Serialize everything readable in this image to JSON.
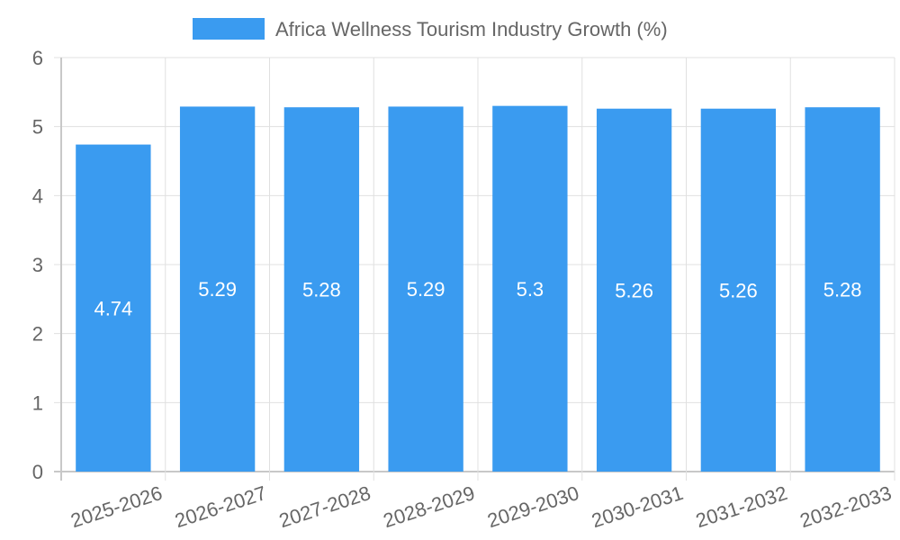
{
  "chart_data": {
    "type": "bar",
    "title": "",
    "xlabel": "",
    "ylabel": "",
    "categories": [
      "2025-2026",
      "2026-2027",
      "2027-2028",
      "2028-2029",
      "2029-2030",
      "2030-2031",
      "2031-2032",
      "2032-2033"
    ],
    "series": [
      {
        "name": "Africa Wellness Tourism Industry Growth (%)",
        "values": [
          4.74,
          5.29,
          5.28,
          5.29,
          5.3,
          5.26,
          5.26,
          5.28
        ],
        "color": "#3a9bf0"
      }
    ],
    "ylim": [
      0,
      6
    ],
    "yticks": [
      "0",
      "1",
      "2",
      "3",
      "4",
      "5",
      "6"
    ],
    "grid": true,
    "legend_position": "top-center",
    "data_labels": [
      "4.74",
      "5.29",
      "5.28",
      "5.29",
      "5.3",
      "5.26",
      "5.26",
      "5.28"
    ]
  },
  "colors": {
    "bar": "#3a9bf0",
    "grid": "#e0e0e0",
    "axis": "#c8c8c8",
    "text": "#666666",
    "label": "#ffffff"
  }
}
